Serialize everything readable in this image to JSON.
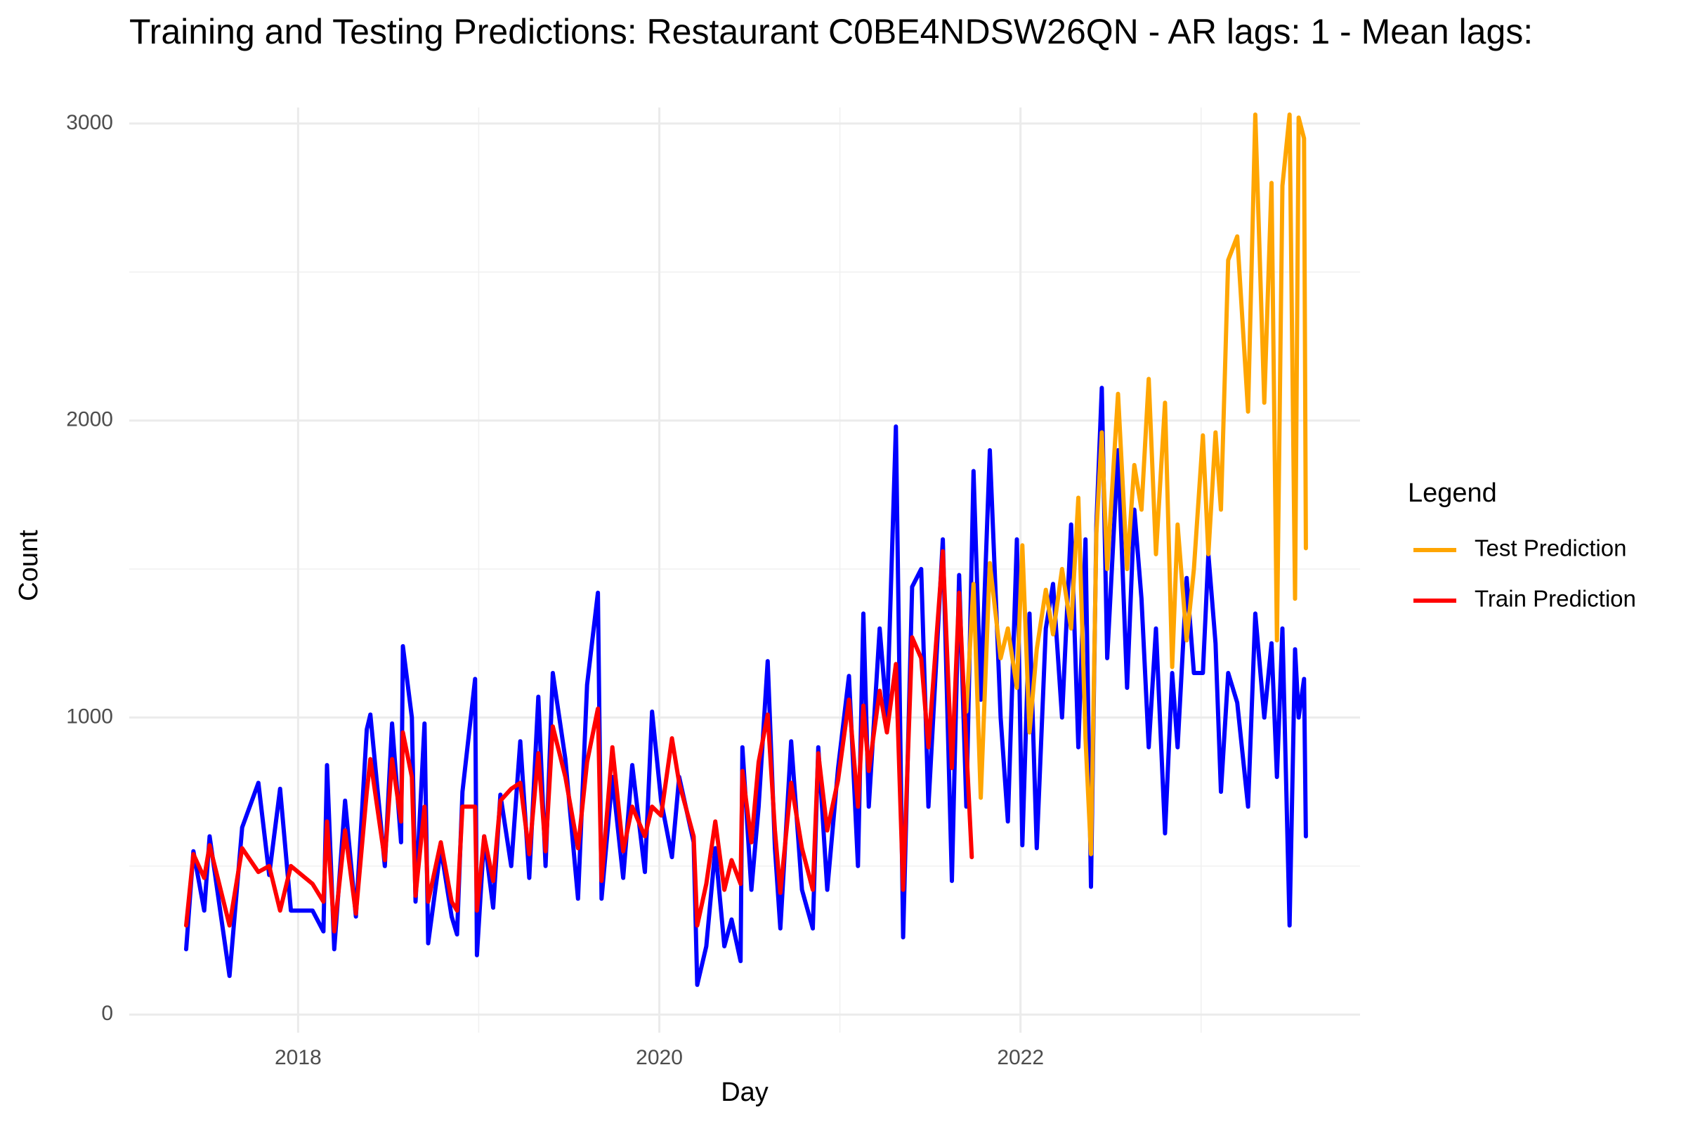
{
  "chart_data": {
    "type": "line",
    "title": "Training and Testing Predictions: Restaurant C0BE4NDSW26QN - AR lags: 1 - Mean lags:",
    "x_label": "Day",
    "y_label": "Count",
    "legend_title": "Legend",
    "xlim": [
      2017.065,
      2023.88
    ],
    "xticks": [
      2018,
      2020,
      2022
    ],
    "ylim": [
      -61,
      3054
    ],
    "yticks": [
      0,
      1000,
      2000,
      3000
    ],
    "grid": true,
    "minor_grid": true,
    "legend_position": "right",
    "series": [
      {
        "color": "#0000ff",
        "x": [
          2017.38,
          2017.42,
          2017.48,
          2017.51,
          2017.62,
          2017.69,
          2017.78,
          2017.84,
          2017.9,
          2017.96,
          2018.08,
          2018.14,
          2018.16,
          2018.2,
          2018.26,
          2018.32,
          2018.38,
          2018.4,
          2018.48,
          2018.52,
          2018.57,
          2018.58,
          2018.63,
          2018.65,
          2018.7,
          2018.72,
          2018.79,
          2018.85,
          2018.88,
          2018.91,
          2018.98,
          2018.99,
          2019.03,
          2019.08,
          2019.12,
          2019.18,
          2019.23,
          2019.28,
          2019.33,
          2019.37,
          2019.41,
          2019.48,
          2019.55,
          2019.6,
          2019.66,
          2019.68,
          2019.74,
          2019.8,
          2019.85,
          2019.92,
          2019.96,
          2020.01,
          2020.07,
          2020.11,
          2020.19,
          2020.21,
          2020.26,
          2020.31,
          2020.36,
          2020.4,
          2020.45,
          2020.46,
          2020.51,
          2020.55,
          2020.6,
          2020.64,
          2020.67,
          2020.73,
          2020.79,
          2020.85,
          2020.88,
          2020.93,
          2020.99,
          2021.05,
          2021.1,
          2021.13,
          2021.16,
          2021.22,
          2021.26,
          2021.31,
          2021.35,
          2021.4,
          2021.45,
          2021.49,
          2021.57,
          2021.62,
          2021.66,
          2021.7,
          2021.74,
          2021.78,
          2021.83,
          2021.89,
          2021.93,
          2021.98,
          2022.01,
          2022.05,
          2022.09,
          2022.14,
          2022.18,
          2022.23,
          2022.28,
          2022.32,
          2022.36,
          2022.39,
          2022.42,
          2022.45,
          2022.48,
          2022.54,
          2022.59,
          2022.63,
          2022.67,
          2022.71,
          2022.75,
          2022.8,
          2022.84,
          2022.87,
          2022.92,
          2022.96,
          2023.01,
          2023.04,
          2023.08,
          2023.11,
          2023.15,
          2023.2,
          2023.26,
          2023.3,
          2023.35,
          2023.39,
          2023.42,
          2023.45,
          2023.49,
          2023.52,
          2023.54,
          2023.57,
          2023.58
        ],
        "values": [
          220,
          550,
          350,
          600,
          130,
          630,
          780,
          470,
          760,
          350,
          350,
          280,
          840,
          220,
          720,
          330,
          960,
          1010,
          500,
          980,
          580,
          1240,
          1000,
          380,
          980,
          240,
          560,
          330,
          270,
          750,
          1130,
          200,
          600,
          360,
          740,
          500,
          920,
          460,
          1070,
          500,
          1150,
          860,
          390,
          1110,
          1420,
          390,
          800,
          460,
          840,
          480,
          1020,
          720,
          530,
          800,
          580,
          100,
          230,
          560,
          230,
          320,
          180,
          900,
          420,
          700,
          1190,
          560,
          290,
          920,
          420,
          290,
          900,
          420,
          830,
          1140,
          500,
          1350,
          700,
          1300,
          1000,
          1980,
          260,
          1440,
          1500,
          700,
          1600,
          450,
          1480,
          700,
          1830,
          1060,
          1900,
          1000,
          650,
          1600,
          570,
          1350,
          560,
          1300,
          1450,
          1000,
          1650,
          900,
          1600,
          430,
          1650,
          2110,
          1200,
          1900,
          1100,
          1700,
          1400,
          900,
          1300,
          610,
          1150,
          900,
          1470,
          1150,
          1150,
          1550,
          1250,
          750,
          1150,
          1050,
          700,
          1350,
          1000,
          1250,
          800,
          1300,
          300,
          1230,
          1000,
          1130,
          600
        ]
      },
      {
        "name": "Test Prediction",
        "color": "#ffa500",
        "x": [
          2021.7,
          2021.74,
          2021.78,
          2021.83,
          2021.89,
          2021.93,
          2021.98,
          2022.01,
          2022.05,
          2022.09,
          2022.14,
          2022.18,
          2022.23,
          2022.28,
          2022.32,
          2022.36,
          2022.39,
          2022.42,
          2022.45,
          2022.48,
          2022.54,
          2022.59,
          2022.63,
          2022.67,
          2022.71,
          2022.75,
          2022.8,
          2022.84,
          2022.87,
          2022.92,
          2022.96,
          2023.01,
          2023.04,
          2023.08,
          2023.11,
          2023.15,
          2023.2,
          2023.26,
          2023.3,
          2023.35,
          2023.39,
          2023.42,
          2023.45,
          2023.49,
          2023.52,
          2023.54,
          2023.57,
          2023.58
        ],
        "values": [
          1020,
          1450,
          730,
          1520,
          1200,
          1300,
          1100,
          1580,
          950,
          1230,
          1430,
          1280,
          1500,
          1300,
          1740,
          930,
          540,
          1620,
          1960,
          1500,
          2090,
          1500,
          1850,
          1700,
          2140,
          1550,
          2060,
          1170,
          1650,
          1260,
          1500,
          1950,
          1550,
          1960,
          1700,
          2540,
          2620,
          2030,
          3030,
          2060,
          2800,
          1260,
          2790,
          3030,
          1400,
          3020,
          2950,
          1570
        ]
      },
      {
        "name": "Train Prediction",
        "color": "#ff0000",
        "x": [
          2017.38,
          2017.42,
          2017.48,
          2017.51,
          2017.62,
          2017.69,
          2017.78,
          2017.84,
          2017.9,
          2017.96,
          2018.08,
          2018.14,
          2018.16,
          2018.2,
          2018.26,
          2018.32,
          2018.38,
          2018.4,
          2018.48,
          2018.52,
          2018.57,
          2018.58,
          2018.63,
          2018.65,
          2018.7,
          2018.72,
          2018.79,
          2018.85,
          2018.88,
          2018.91,
          2018.98,
          2018.99,
          2019.03,
          2019.08,
          2019.12,
          2019.18,
          2019.23,
          2019.28,
          2019.33,
          2019.37,
          2019.41,
          2019.48,
          2019.55,
          2019.6,
          2019.66,
          2019.68,
          2019.74,
          2019.8,
          2019.85,
          2019.92,
          2019.96,
          2020.01,
          2020.07,
          2020.11,
          2020.19,
          2020.21,
          2020.26,
          2020.31,
          2020.36,
          2020.4,
          2020.45,
          2020.46,
          2020.51,
          2020.55,
          2020.6,
          2020.64,
          2020.67,
          2020.73,
          2020.79,
          2020.85,
          2020.88,
          2020.93,
          2020.99,
          2021.05,
          2021.1,
          2021.13,
          2021.16,
          2021.22,
          2021.26,
          2021.31,
          2021.35,
          2021.4,
          2021.45,
          2021.49,
          2021.57,
          2021.62,
          2021.66,
          2021.7,
          2021.73
        ],
        "values": [
          300,
          540,
          460,
          570,
          300,
          560,
          480,
          500,
          350,
          500,
          440,
          380,
          650,
          280,
          620,
          340,
          750,
          860,
          520,
          860,
          650,
          950,
          800,
          400,
          700,
          380,
          580,
          380,
          350,
          700,
          700,
          350,
          600,
          450,
          720,
          760,
          780,
          540,
          880,
          550,
          970,
          800,
          560,
          850,
          1030,
          450,
          900,
          550,
          700,
          600,
          700,
          670,
          930,
          780,
          600,
          300,
          440,
          650,
          420,
          520,
          440,
          820,
          580,
          850,
          1010,
          620,
          410,
          780,
          560,
          420,
          880,
          620,
          790,
          1060,
          700,
          1040,
          820,
          1090,
          950,
          1180,
          420,
          1270,
          1200,
          900,
          1560,
          830,
          1420,
          900,
          530
        ]
      }
    ]
  }
}
